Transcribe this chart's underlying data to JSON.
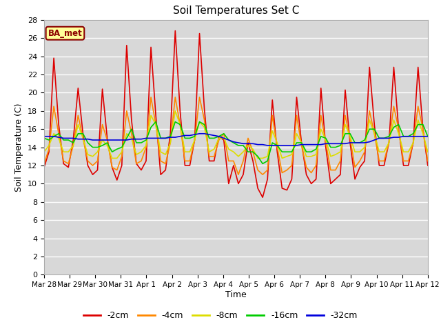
{
  "title": "Soil Temperatures Set C",
  "xlabel": "Time",
  "ylabel": "Soil Temperature (C)",
  "ylim": [
    0,
    28
  ],
  "yticks": [
    0,
    2,
    4,
    6,
    8,
    10,
    12,
    14,
    16,
    18,
    20,
    22,
    24,
    26,
    28
  ],
  "annotation_text": "BA_met",
  "bg_color": "#d8d8d8",
  "line_colors": {
    "-2cm": "#dd0000",
    "-4cm": "#ff8800",
    "-8cm": "#dddd00",
    "-16cm": "#00cc00",
    "-32cm": "#0000dd"
  },
  "x_labels": [
    "Mar 28",
    "Mar 29",
    "Mar 30",
    "Mar 31",
    "Apr 1",
    "Apr 2",
    "Apr 3",
    "Apr 4",
    "Apr 5",
    "Apr 6",
    "Apr 7",
    "Apr 8",
    "Apr 9",
    "Apr 10",
    "Apr 11",
    "Apr 12"
  ],
  "n_days": 16,
  "series": {
    "-2cm": [
      11.8,
      13.5,
      23.8,
      16.5,
      12.2,
      11.8,
      14.8,
      20.5,
      15.5,
      12.0,
      11.0,
      11.5,
      20.4,
      15.0,
      11.8,
      10.4,
      12.0,
      25.2,
      17.0,
      12.2,
      11.5,
      12.5,
      25.0,
      17.5,
      11.0,
      11.5,
      15.5,
      26.8,
      18.0,
      12.0,
      12.0,
      14.8,
      26.5,
      18.2,
      12.5,
      12.5,
      15.2,
      14.8,
      10.0,
      12.0,
      10.0,
      11.0,
      14.5,
      12.5,
      9.5,
      8.5,
      10.5,
      19.2,
      13.5,
      9.5,
      9.3,
      10.5,
      19.5,
      14.5,
      11.0,
      10.0,
      10.5,
      20.5,
      14.0,
      10.0,
      10.5,
      11.0,
      20.3,
      14.5,
      10.5,
      11.8,
      12.5,
      22.8,
      16.5,
      12.0,
      12.0,
      14.5,
      22.8,
      16.0,
      12.0,
      12.0,
      14.5,
      22.8,
      16.0,
      12.0
    ],
    "-4cm": [
      12.2,
      13.8,
      18.5,
      15.5,
      12.5,
      12.2,
      14.2,
      17.5,
      15.0,
      12.5,
      12.0,
      12.5,
      16.5,
      14.8,
      11.8,
      11.5,
      13.0,
      18.0,
      15.5,
      12.2,
      12.5,
      14.0,
      19.5,
      16.5,
      12.5,
      12.2,
      14.5,
      19.5,
      16.5,
      12.5,
      12.5,
      14.8,
      19.5,
      17.0,
      13.0,
      13.0,
      14.8,
      15.5,
      12.5,
      12.5,
      11.0,
      12.5,
      15.0,
      13.5,
      11.5,
      11.0,
      11.5,
      17.5,
      14.0,
      11.2,
      11.5,
      12.0,
      17.5,
      14.2,
      11.8,
      11.2,
      12.0,
      17.5,
      14.5,
      11.5,
      11.5,
      12.5,
      17.5,
      15.0,
      11.8,
      12.5,
      13.5,
      18.0,
      15.5,
      12.5,
      12.5,
      14.5,
      18.5,
      16.0,
      12.5,
      12.5,
      14.5,
      18.5,
      16.0,
      12.5
    ],
    "-8cm": [
      13.5,
      14.2,
      15.5,
      15.0,
      13.5,
      13.5,
      14.2,
      16.5,
      15.0,
      13.2,
      13.0,
      13.5,
      14.8,
      14.2,
      12.8,
      12.8,
      13.5,
      15.5,
      15.0,
      13.2,
      13.5,
      14.2,
      17.5,
      16.5,
      13.5,
      13.2,
      14.5,
      18.0,
      16.5,
      13.5,
      13.5,
      14.8,
      16.8,
      16.2,
      13.5,
      13.8,
      15.0,
      15.0,
      13.8,
      13.5,
      13.0,
      13.5,
      14.2,
      13.8,
      12.8,
      12.8,
      13.0,
      15.8,
      14.5,
      12.8,
      13.0,
      13.2,
      15.5,
      14.5,
      13.0,
      13.0,
      13.2,
      16.0,
      14.8,
      13.0,
      13.2,
      13.5,
      16.5,
      15.2,
      13.5,
      13.5,
      14.0,
      17.0,
      15.5,
      13.5,
      13.5,
      14.5,
      17.0,
      15.5,
      13.5,
      13.5,
      14.5,
      17.0,
      15.5,
      13.5
    ],
    "-16cm": [
      15.0,
      14.8,
      15.2,
      15.5,
      14.8,
      14.8,
      14.5,
      15.5,
      15.5,
      14.5,
      14.0,
      14.0,
      14.2,
      14.5,
      13.5,
      13.8,
      14.0,
      15.0,
      16.0,
      14.5,
      14.5,
      14.8,
      16.2,
      16.8,
      15.0,
      15.0,
      15.2,
      16.8,
      16.5,
      15.0,
      15.0,
      15.2,
      16.8,
      16.5,
      15.0,
      15.0,
      15.2,
      15.5,
      14.8,
      14.5,
      14.2,
      14.2,
      13.5,
      13.5,
      13.0,
      12.2,
      12.5,
      14.5,
      14.2,
      13.5,
      13.5,
      13.5,
      14.5,
      14.5,
      13.5,
      13.5,
      13.8,
      15.2,
      15.0,
      14.0,
      14.0,
      14.2,
      15.5,
      15.5,
      14.5,
      14.5,
      14.8,
      16.0,
      16.0,
      15.0,
      15.0,
      15.2,
      16.2,
      16.5,
      15.2,
      15.2,
      15.5,
      16.5,
      16.5,
      15.2
    ],
    "-32cm": [
      15.2,
      15.2,
      15.2,
      15.1,
      15.0,
      15.0,
      15.0,
      14.9,
      14.9,
      14.9,
      14.8,
      14.8,
      14.8,
      14.8,
      14.8,
      14.8,
      14.8,
      14.8,
      14.9,
      14.9,
      14.9,
      15.0,
      15.0,
      15.0,
      15.0,
      15.0,
      15.1,
      15.1,
      15.2,
      15.3,
      15.3,
      15.4,
      15.5,
      15.5,
      15.4,
      15.3,
      15.2,
      15.0,
      14.8,
      14.6,
      14.5,
      14.4,
      14.4,
      14.4,
      14.3,
      14.3,
      14.2,
      14.2,
      14.2,
      14.2,
      14.2,
      14.2,
      14.2,
      14.3,
      14.3,
      14.3,
      14.3,
      14.3,
      14.4,
      14.4,
      14.4,
      14.4,
      14.4,
      14.5,
      14.5,
      14.5,
      14.5,
      14.6,
      14.8,
      15.0,
      15.0,
      15.0,
      15.1,
      15.1,
      15.2,
      15.2,
      15.2,
      15.2,
      15.2,
      15.2
    ]
  }
}
